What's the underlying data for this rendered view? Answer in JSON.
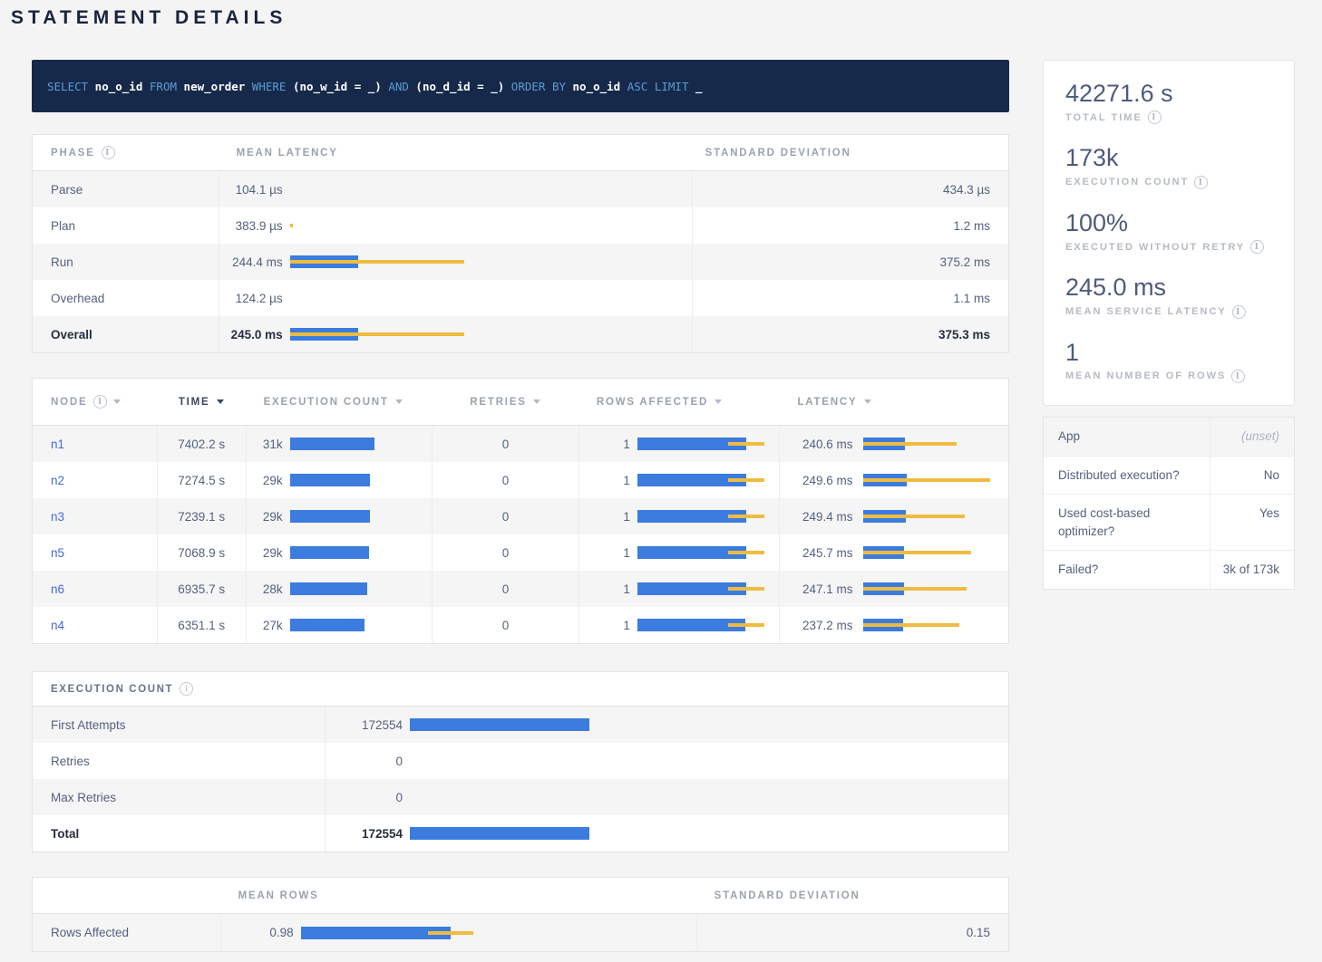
{
  "page_title": "STATEMENT DETAILS",
  "colors": {
    "page_background": "#F4F4F5",
    "sql_background": "#16294B",
    "sql_keyword": "#5C9BD6",
    "bar_blue": "#3B7CDE",
    "bar_yellow": "#EFBB41",
    "node_link": "#3E6BDB"
  },
  "sql": {
    "tokens": [
      {
        "text": "SELECT",
        "type": "kw"
      },
      {
        "text": "no_o_id",
        "type": "id"
      },
      {
        "text": "FROM",
        "type": "kw"
      },
      {
        "text": "new_order",
        "type": "id"
      },
      {
        "text": "WHERE",
        "type": "kw"
      },
      {
        "text": "(no_w_id = _)",
        "type": "id"
      },
      {
        "text": "AND",
        "type": "kw"
      },
      {
        "text": "(no_d_id = _)",
        "type": "id"
      },
      {
        "text": "ORDER BY",
        "type": "kw"
      },
      {
        "text": "no_o_id",
        "type": "id"
      },
      {
        "text": "ASC",
        "type": "kw"
      },
      {
        "text": "LIMIT",
        "type": "kw"
      },
      {
        "text": "_",
        "type": "id"
      }
    ]
  },
  "phase_table": {
    "columns": [
      {
        "label": "PHASE",
        "info": true
      },
      {
        "label": "MEAN LATENCY"
      },
      {
        "label": "STANDARD DEVIATION"
      }
    ],
    "rows": [
      {
        "phase": "Parse",
        "mean": "104.1 µs",
        "bar": {
          "blue": 0,
          "yellow_start": 0,
          "yellow_end": 0
        },
        "stddev": "434.3 µs",
        "bold": false
      },
      {
        "phase": "Plan",
        "mean": "383.9 µs",
        "bar": {
          "blue": 0,
          "yellow_start": 0,
          "yellow_end": 3
        },
        "stddev": "1.2 ms",
        "bold": false
      },
      {
        "phase": "Run",
        "mean": "244.4 ms",
        "bar": {
          "blue": 75,
          "yellow_start": 0,
          "yellow_end": 192
        },
        "stddev": "375.2 ms",
        "bold": false
      },
      {
        "phase": "Overhead",
        "mean": "124.2 µs",
        "bar": {
          "blue": 0,
          "yellow_start": 0,
          "yellow_end": 0
        },
        "stddev": "1.1 ms",
        "bold": false
      },
      {
        "phase": "Overall",
        "mean": "245.0 ms",
        "bar": {
          "blue": 75,
          "yellow_start": 0,
          "yellow_end": 192
        },
        "stddev": "375.3 ms",
        "bold": true
      }
    ]
  },
  "node_table": {
    "columns": [
      {
        "label": "NODE",
        "info": true,
        "sort": true,
        "active": false
      },
      {
        "label": "TIME",
        "sort": true,
        "active": true
      },
      {
        "label": "EXECUTION COUNT",
        "sort": true,
        "active": false
      },
      {
        "label": "RETRIES",
        "sort": true,
        "active": false
      },
      {
        "label": "ROWS AFFECTED",
        "sort": true,
        "active": false
      },
      {
        "label": "LATENCY",
        "sort": true,
        "active": false
      }
    ],
    "rows": [
      {
        "node": "n1",
        "time": "7402.2 s",
        "exec_count": "31k",
        "exec_bar": 93,
        "retries": "0",
        "rows_affected": "1",
        "rows_bar": {
          "blue": 120,
          "yellow_start": 100,
          "yellow_end": 140
        },
        "latency": "240.6 ms",
        "latency_bar": {
          "blue": 46,
          "yellow_start": 0,
          "yellow_end": 103
        }
      },
      {
        "node": "n2",
        "time": "7274.5 s",
        "exec_count": "29k",
        "exec_bar": 88,
        "retries": "0",
        "rows_affected": "1",
        "rows_bar": {
          "blue": 120,
          "yellow_start": 100,
          "yellow_end": 140
        },
        "latency": "249.6 ms",
        "latency_bar": {
          "blue": 48,
          "yellow_start": 0,
          "yellow_end": 140
        }
      },
      {
        "node": "n3",
        "time": "7239.1 s",
        "exec_count": "29k",
        "exec_bar": 88,
        "retries": "0",
        "rows_affected": "1",
        "rows_bar": {
          "blue": 120,
          "yellow_start": 100,
          "yellow_end": 140
        },
        "latency": "249.4 ms",
        "latency_bar": {
          "blue": 47,
          "yellow_start": 0,
          "yellow_end": 112
        }
      },
      {
        "node": "n5",
        "time": "7068.9 s",
        "exec_count": "29k",
        "exec_bar": 87,
        "retries": "0",
        "rows_affected": "1",
        "rows_bar": {
          "blue": 120,
          "yellow_start": 100,
          "yellow_end": 140
        },
        "latency": "245.7 ms",
        "latency_bar": {
          "blue": 45,
          "yellow_start": 0,
          "yellow_end": 119
        }
      },
      {
        "node": "n6",
        "time": "6935.7 s",
        "exec_count": "28k",
        "exec_bar": 85,
        "retries": "0",
        "rows_affected": "1",
        "rows_bar": {
          "blue": 120,
          "yellow_start": 100,
          "yellow_end": 140
        },
        "latency": "247.1 ms",
        "latency_bar": {
          "blue": 45,
          "yellow_start": 0,
          "yellow_end": 114
        }
      },
      {
        "node": "n4",
        "time": "6351.1 s",
        "exec_count": "27k",
        "exec_bar": 82,
        "retries": "0",
        "rows_affected": "1",
        "rows_bar": {
          "blue": 119,
          "yellow_start": 100,
          "yellow_end": 140
        },
        "latency": "237.2 ms",
        "latency_bar": {
          "blue": 44,
          "yellow_start": 0,
          "yellow_end": 106
        }
      }
    ]
  },
  "execution_count_table": {
    "title": "EXECUTION COUNT",
    "info": true,
    "rows": [
      {
        "label": "First Attempts",
        "value": "172554",
        "bar": 198,
        "bold": false
      },
      {
        "label": "Retries",
        "value": "0",
        "bar": 0,
        "bold": false
      },
      {
        "label": "Max Retries",
        "value": "0",
        "bar": 0,
        "bold": false
      },
      {
        "label": "Total",
        "value": "172554",
        "bar": 198,
        "bold": true
      }
    ]
  },
  "rows_table": {
    "columns": [
      {
        "label": ""
      },
      {
        "label": "MEAN ROWS"
      },
      {
        "label": "STANDARD DEVIATION"
      }
    ],
    "rows": [
      {
        "label": "Rows Affected",
        "mean": "0.98",
        "bar": {
          "blue": 165,
          "yellow_start": 140,
          "yellow_end": 190
        },
        "stddev": "0.15"
      }
    ]
  },
  "sidebar": {
    "stats": [
      {
        "value": "42271.6 s",
        "label": "TOTAL TIME"
      },
      {
        "value": "173k",
        "label": "EXECUTION COUNT"
      },
      {
        "value": "100%",
        "label": "EXECUTED WITHOUT RETRY"
      },
      {
        "value": "245.0 ms",
        "label": "MEAN SERVICE LATENCY"
      },
      {
        "value": "1",
        "label": "MEAN NUMBER OF ROWS"
      }
    ],
    "details": [
      {
        "label": "App",
        "value": "(unset)",
        "italic": true,
        "header": true
      },
      {
        "label": "Distributed execution?",
        "value": "No",
        "italic": false,
        "header": false
      },
      {
        "label": "Used cost-based optimizer?",
        "value": "Yes",
        "italic": false,
        "header": false
      },
      {
        "label": "Failed?",
        "value": "3k of 173k",
        "italic": false,
        "header": false
      }
    ]
  }
}
